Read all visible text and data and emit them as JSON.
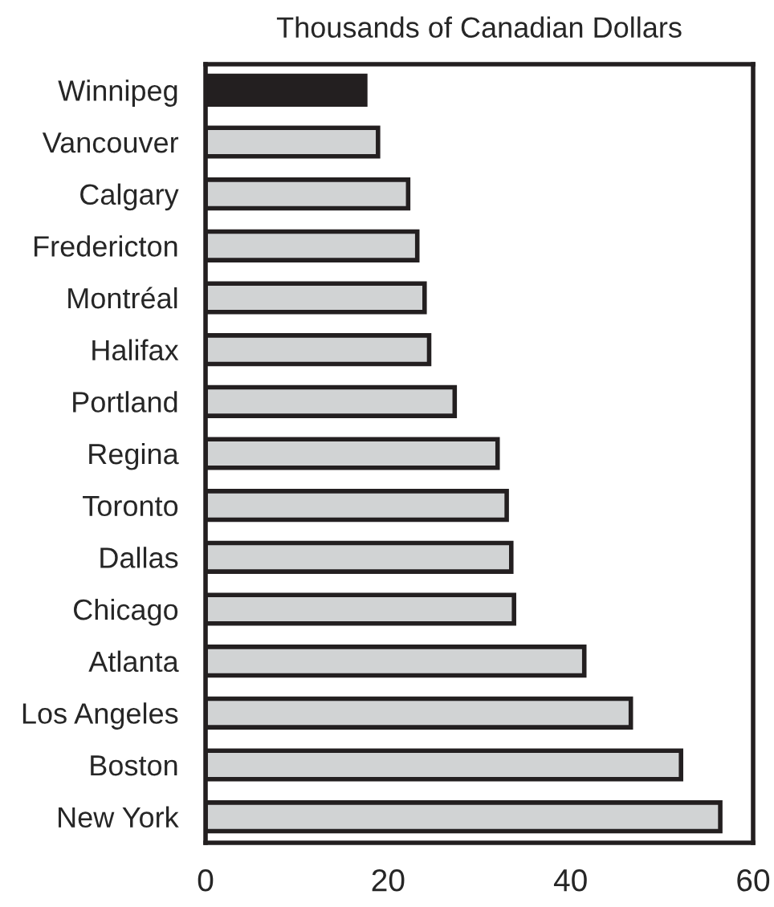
{
  "chart_data": {
    "type": "bar",
    "orientation": "horizontal",
    "title": "Thousands of Canadian Dollars",
    "categories": [
      "Winnipeg",
      "Vancouver",
      "Calgary",
      "Fredericton",
      "Montréal",
      "Halifax",
      "Portland",
      "Regina",
      "Toronto",
      "Dallas",
      "Chicago",
      "Atlanta",
      "Los Angeles",
      "Boston",
      "New York"
    ],
    "values": [
      17.5,
      18.9,
      22.2,
      23.2,
      24.0,
      24.5,
      27.3,
      32.0,
      33.0,
      33.5,
      33.8,
      41.5,
      46.6,
      52.1,
      56.4
    ],
    "colors": [
      "#231f20",
      "#d1d3d4",
      "#d1d3d4",
      "#d1d3d4",
      "#d1d3d4",
      "#d1d3d4",
      "#d1d3d4",
      "#d1d3d4",
      "#d1d3d4",
      "#d1d3d4",
      "#d1d3d4",
      "#d1d3d4",
      "#d1d3d4",
      "#d1d3d4",
      "#d1d3d4"
    ],
    "xlim": [
      0,
      60
    ],
    "xticks": [
      0,
      20,
      40,
      60
    ],
    "grid": false,
    "legend": false
  }
}
